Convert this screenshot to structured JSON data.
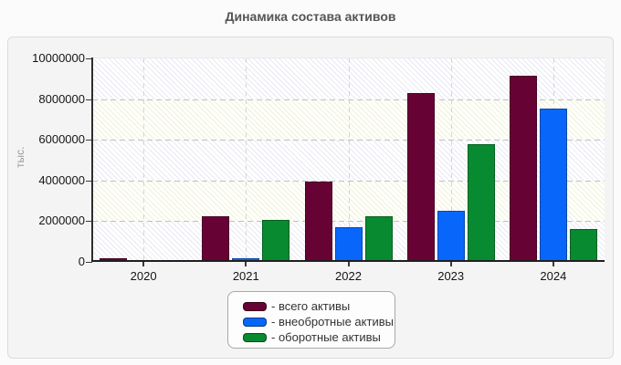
{
  "title": "Динамика состава активов",
  "chart_data": {
    "type": "bar",
    "title": "Динамика состава активов",
    "ylabel": "тыс.",
    "xlabel": "",
    "categories": [
      "2020",
      "2021",
      "2022",
      "2023",
      "2024"
    ],
    "series": [
      {
        "id": "total-assets",
        "name": "всего активы",
        "legend_label": "- всего активы",
        "color": "#670234",
        "values": [
          190000,
          2250000,
          3950000,
          8300000,
          9150000
        ]
      },
      {
        "id": "non-current-assets",
        "name": "внеобротные активы",
        "legend_label": "- внеобротные активы",
        "color": "#0866fa",
        "values": [
          100000,
          180000,
          1700000,
          2500000,
          7550000
        ]
      },
      {
        "id": "current-assets",
        "name": "оборотные активы",
        "legend_label": "- оборотные активы",
        "color": "#088a30",
        "values": [
          90000,
          2080000,
          2250000,
          5800000,
          1600000
        ]
      }
    ],
    "ylim": [
      0,
      10000000
    ],
    "yticks": [
      0,
      2000000,
      4000000,
      6000000,
      8000000,
      10000000
    ],
    "ytick_labels": [
      "0",
      "2000000",
      "4000000",
      "6000000",
      "8000000",
      "10000000"
    ],
    "grid": "dashed-horizontal-and-vertical",
    "legend_position": "bottom-center",
    "band_styles": [
      {
        "line": "#e8e8f3",
        "bg": "#ffffff"
      },
      {
        "line": "#f0f0de",
        "bg": "#fffffb"
      }
    ]
  }
}
